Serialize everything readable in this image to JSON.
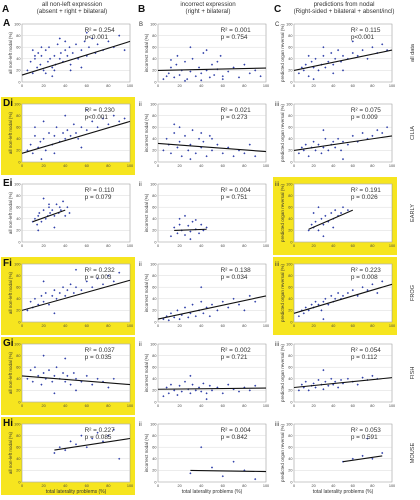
{
  "column_headers": [
    {
      "letter": "A",
      "title": "all non-left expression",
      "subtitle": "(absent + right + bilateral)"
    },
    {
      "letter": "B",
      "title": "incorrect expression",
      "subtitle": "(right + bilateral)"
    },
    {
      "letter": "C",
      "title": "predictions from nodal",
      "subtitle": "(Right-sided + bilateral + absent/incl)"
    }
  ],
  "row_labels": [
    "all data",
    "CILIA",
    "EARLY",
    "FROG",
    "FISH",
    "MOUSE"
  ],
  "panel_labels": [
    [
      "A",
      "B",
      "C"
    ],
    [
      "Di",
      "ii",
      "iii"
    ],
    [
      "Ei",
      "ii",
      "iii"
    ],
    [
      "Fi",
      "ii",
      "iii"
    ],
    [
      "Gi",
      "ii",
      "iii"
    ],
    [
      "Hi",
      "ii",
      "iii"
    ]
  ],
  "x_axis_title": "total laterality problems (%)",
  "y_axis_titles": [
    "all non-left nodal (%)",
    "incorrect nodal (%)",
    "predicted organ reversal (%)"
  ],
  "highlight_color": "#f6e51f",
  "point_color": "#2f3fa8",
  "line_color": "#111111",
  "chart_data": [
    {
      "type": "scatter",
      "row": 0,
      "col": 0,
      "r2": "R² = 0.254",
      "p": "p<0.001",
      "highlight": false,
      "trend": [
        [
          0,
          12
        ],
        [
          100,
          70
        ]
      ],
      "xlim": [
        0,
        100
      ],
      "ylim": [
        0,
        100
      ],
      "x": [
        5,
        8,
        10,
        12,
        14,
        15,
        17,
        18,
        20,
        22,
        24,
        25,
        26,
        28,
        30,
        31,
        33,
        35,
        36,
        38,
        40,
        42,
        44,
        45,
        47,
        50,
        52,
        55,
        58,
        60,
        62,
        65,
        68,
        70,
        75,
        80,
        85,
        90,
        95,
        30,
        18,
        12,
        22,
        40,
        55,
        60,
        10,
        28,
        35,
        45
      ],
      "y": [
        20,
        35,
        15,
        40,
        25,
        50,
        30,
        45,
        20,
        55,
        35,
        60,
        40,
        25,
        45,
        30,
        65,
        40,
        50,
        35,
        55,
        45,
        60,
        30,
        50,
        65,
        40,
        55,
        70,
        45,
        60,
        75,
        50,
        65,
        55,
        70,
        60,
        80,
        55,
        20,
        60,
        45,
        15,
        70,
        25,
        85,
        55,
        10,
        75,
        20
      ]
    },
    {
      "type": "scatter",
      "row": 0,
      "col": 1,
      "r2": "R² = 0.001",
      "p": "p = 0.754",
      "highlight": false,
      "trend": [
        [
          0,
          20
        ],
        [
          100,
          24
        ]
      ],
      "xlim": [
        0,
        100
      ],
      "ylim": [
        0,
        100
      ],
      "x": [
        5,
        8,
        10,
        12,
        15,
        17,
        20,
        22,
        25,
        27,
        30,
        32,
        35,
        38,
        40,
        42,
        45,
        48,
        50,
        52,
        55,
        58,
        60,
        65,
        70,
        75,
        80,
        85,
        90,
        95,
        30,
        25,
        18,
        12,
        40,
        45,
        55,
        60
      ],
      "y": [
        5,
        10,
        15,
        25,
        8,
        30,
        12,
        20,
        35,
        5,
        18,
        40,
        10,
        25,
        15,
        50,
        20,
        8,
        30,
        12,
        22,
        45,
        10,
        18,
        25,
        8,
        30,
        15,
        20,
        10,
        60,
        2,
        45,
        38,
        3,
        55,
        35,
        5
      ]
    },
    {
      "type": "scatter",
      "row": 0,
      "col": 2,
      "r2": "R² = 0.115",
      "p": "p<0.001",
      "highlight": false,
      "trend": [
        [
          0,
          20
        ],
        [
          100,
          55
        ]
      ],
      "xlim": [
        0,
        100
      ],
      "ylim": [
        0,
        100
      ],
      "x": [
        5,
        8,
        10,
        12,
        15,
        18,
        20,
        22,
        25,
        28,
        30,
        32,
        35,
        38,
        40,
        42,
        45,
        48,
        50,
        55,
        60,
        65,
        70,
        75,
        80,
        85,
        90,
        95,
        30,
        20,
        15,
        40,
        50,
        60
      ],
      "y": [
        15,
        25,
        20,
        30,
        10,
        35,
        25,
        40,
        20,
        30,
        45,
        25,
        35,
        50,
        30,
        40,
        55,
        35,
        45,
        40,
        50,
        45,
        55,
        40,
        60,
        50,
        65,
        55,
        60,
        5,
        45,
        15,
        20,
        70
      ]
    },
    {
      "type": "scatter",
      "row": 1,
      "col": 0,
      "r2": "R² = 0.230",
      "p": "p<0.001",
      "highlight": true,
      "trend": [
        [
          0,
          15
        ],
        [
          100,
          70
        ]
      ],
      "xlim": [
        0,
        100
      ],
      "ylim": [
        0,
        100
      ],
      "x": [
        5,
        8,
        10,
        12,
        15,
        17,
        20,
        22,
        25,
        28,
        30,
        32,
        35,
        38,
        40,
        42,
        45,
        48,
        50,
        52,
        55,
        60,
        65,
        70,
        75,
        80,
        85,
        90,
        95,
        20,
        30,
        40,
        55,
        60,
        12,
        18
      ],
      "y": [
        20,
        30,
        15,
        45,
        25,
        35,
        40,
        20,
        50,
        30,
        45,
        60,
        35,
        50,
        40,
        55,
        45,
        65,
        50,
        40,
        60,
        55,
        70,
        60,
        75,
        65,
        80,
        70,
        75,
        70,
        15,
        80,
        25,
        90,
        60,
        5
      ]
    },
    {
      "type": "scatter",
      "row": 1,
      "col": 1,
      "r2": "R² = 0.021",
      "p": "p = 0.273",
      "highlight": false,
      "trend": [
        [
          0,
          32
        ],
        [
          100,
          18
        ]
      ],
      "xlim": [
        0,
        100
      ],
      "ylim": [
        0,
        100
      ],
      "x": [
        5,
        8,
        10,
        12,
        15,
        18,
        20,
        22,
        25,
        28,
        30,
        32,
        35,
        38,
        40,
        42,
        45,
        48,
        50,
        55,
        60,
        65,
        70,
        75,
        80,
        85,
        90,
        20,
        30,
        15,
        40,
        50
      ],
      "y": [
        20,
        40,
        30,
        15,
        50,
        25,
        35,
        10,
        45,
        20,
        30,
        55,
        15,
        40,
        25,
        35,
        10,
        45,
        20,
        30,
        15,
        25,
        10,
        20,
        15,
        30,
        10,
        60,
        5,
        65,
        50,
        40
      ]
    },
    {
      "type": "scatter",
      "row": 1,
      "col": 2,
      "r2": "R² = 0.075",
      "p": "p = 0.009",
      "highlight": false,
      "trend": [
        [
          0,
          20
        ],
        [
          100,
          45
        ]
      ],
      "xlim": [
        0,
        100
      ],
      "ylim": [
        0,
        100
      ],
      "x": [
        5,
        8,
        10,
        12,
        15,
        18,
        20,
        22,
        25,
        28,
        30,
        32,
        35,
        38,
        40,
        42,
        45,
        48,
        50,
        55,
        60,
        65,
        70,
        75,
        80,
        85,
        90,
        95,
        30,
        50
      ],
      "y": [
        15,
        25,
        20,
        30,
        10,
        25,
        35,
        20,
        30,
        15,
        25,
        40,
        20,
        30,
        35,
        25,
        40,
        20,
        35,
        30,
        45,
        35,
        50,
        40,
        45,
        55,
        50,
        60,
        55,
        5
      ]
    },
    {
      "type": "scatter",
      "row": 2,
      "col": 0,
      "r2": "R² = 0.110",
      "p": "p = 0.079",
      "highlight": false,
      "trend": [
        [
          10,
          35
        ],
        [
          40,
          55
        ]
      ],
      "xlim": [
        0,
        100
      ],
      "ylim": [
        0,
        100
      ],
      "x": [
        10,
        12,
        14,
        15,
        16,
        18,
        20,
        22,
        24,
        25,
        26,
        28,
        30,
        32,
        34,
        35,
        36,
        38,
        40,
        42,
        44,
        20,
        15,
        30,
        25
      ],
      "y": [
        35,
        40,
        30,
        45,
        50,
        35,
        55,
        40,
        45,
        60,
        50,
        55,
        45,
        65,
        50,
        60,
        55,
        70,
        45,
        60,
        50,
        75,
        20,
        25,
        65
      ]
    },
    {
      "type": "scatter",
      "row": 2,
      "col": 1,
      "r2": "R² = 0.004",
      "p": "p = 0.751",
      "highlight": false,
      "trend": [
        [
          15,
          20
        ],
        [
          45,
          22
        ]
      ],
      "xlim": [
        0,
        100
      ],
      "ylim": [
        0,
        100
      ],
      "x": [
        12,
        15,
        18,
        20,
        22,
        25,
        28,
        30,
        32,
        35,
        38,
        40,
        42,
        45,
        20,
        30,
        25,
        35
      ],
      "y": [
        10,
        25,
        15,
        30,
        20,
        12,
        28,
        18,
        35,
        22,
        15,
        30,
        20,
        25,
        40,
        5,
        45,
        38
      ]
    },
    {
      "type": "scatter",
      "row": 2,
      "col": 2,
      "r2": "R² = 0.191",
      "p": "p = 0.026",
      "highlight": true,
      "trend": [
        [
          15,
          22
        ],
        [
          60,
          55
        ]
      ],
      "xlim": [
        0,
        100
      ],
      "ylim": [
        0,
        100
      ],
      "x": [
        15,
        18,
        20,
        22,
        25,
        28,
        30,
        32,
        35,
        38,
        40,
        42,
        45,
        48,
        50,
        55,
        20,
        30,
        40,
        25
      ],
      "y": [
        20,
        30,
        25,
        35,
        20,
        40,
        30,
        45,
        35,
        50,
        40,
        55,
        45,
        50,
        60,
        55,
        50,
        10,
        25,
        60
      ]
    },
    {
      "type": "scatter",
      "row": 3,
      "col": 0,
      "r2": "R² = 0.232",
      "p": "p = 0.003",
      "highlight": true,
      "trend": [
        [
          0,
          20
        ],
        [
          100,
          72
        ]
      ],
      "xlim": [
        0,
        100
      ],
      "ylim": [
        0,
        100
      ],
      "x": [
        5,
        8,
        10,
        12,
        15,
        18,
        20,
        22,
        25,
        28,
        30,
        32,
        35,
        38,
        40,
        42,
        45,
        48,
        50,
        55,
        60,
        65,
        70,
        75,
        80,
        85,
        90,
        20,
        30,
        50
      ],
      "y": [
        20,
        35,
        25,
        40,
        30,
        45,
        35,
        50,
        30,
        45,
        55,
        40,
        50,
        60,
        45,
        55,
        65,
        50,
        60,
        55,
        70,
        60,
        75,
        65,
        80,
        70,
        85,
        70,
        15,
        90
      ]
    },
    {
      "type": "scatter",
      "row": 3,
      "col": 1,
      "r2": "R² = 0.138",
      "p": "p = 0.034",
      "highlight": false,
      "trend": [
        [
          0,
          5
        ],
        [
          100,
          45
        ]
      ],
      "xlim": [
        0,
        100
      ],
      "ylim": [
        0,
        100
      ],
      "x": [
        5,
        8,
        10,
        12,
        15,
        18,
        20,
        22,
        25,
        28,
        30,
        32,
        35,
        38,
        40,
        42,
        45,
        48,
        50,
        55,
        60,
        65,
        70,
        75,
        80,
        85,
        90,
        40
      ],
      "y": [
        5,
        10,
        3,
        15,
        8,
        20,
        5,
        12,
        25,
        8,
        15,
        30,
        10,
        20,
        35,
        15,
        25,
        10,
        30,
        20,
        35,
        25,
        40,
        30,
        20,
        45,
        35,
        60
      ]
    },
    {
      "type": "scatter",
      "row": 3,
      "col": 2,
      "r2": "R² = 0.223",
      "p": "p = 0.008",
      "highlight": true,
      "trend": [
        [
          0,
          15
        ],
        [
          100,
          65
        ]
      ],
      "xlim": [
        0,
        100
      ],
      "ylim": [
        0,
        100
      ],
      "x": [
        5,
        8,
        10,
        12,
        15,
        18,
        20,
        22,
        25,
        28,
        30,
        32,
        35,
        38,
        40,
        42,
        45,
        48,
        50,
        55,
        60,
        65,
        70,
        75,
        80,
        85,
        90,
        30
      ],
      "y": [
        10,
        20,
        15,
        25,
        20,
        30,
        25,
        35,
        30,
        20,
        35,
        40,
        30,
        45,
        35,
        40,
        50,
        40,
        45,
        50,
        55,
        45,
        60,
        55,
        65,
        50,
        70,
        5
      ]
    },
    {
      "type": "scatter",
      "row": 4,
      "col": 0,
      "r2": "R² = 0.037",
      "p": "p = 0.035",
      "highlight": true,
      "trend": [
        [
          0,
          45
        ],
        [
          100,
          30
        ]
      ],
      "xlim": [
        0,
        100
      ],
      "ylim": [
        0,
        100
      ],
      "x": [
        5,
        8,
        10,
        12,
        15,
        18,
        20,
        22,
        25,
        28,
        30,
        32,
        35,
        38,
        40,
        42,
        45,
        48,
        50,
        55,
        60,
        65,
        70,
        75,
        80,
        85,
        20,
        30,
        40,
        50
      ],
      "y": [
        40,
        55,
        35,
        60,
        45,
        30,
        50,
        40,
        55,
        35,
        45,
        60,
        40,
        50,
        35,
        45,
        30,
        50,
        40,
        35,
        45,
        30,
        40,
        35,
        25,
        40,
        80,
        15,
        75,
        20
      ]
    },
    {
      "type": "scatter",
      "row": 4,
      "col": 1,
      "r2": "R² = 0.002",
      "p": "p = 0.721",
      "highlight": false,
      "trend": [
        [
          0,
          22
        ],
        [
          100,
          24
        ]
      ],
      "xlim": [
        0,
        100
      ],
      "ylim": [
        0,
        100
      ],
      "x": [
        5,
        8,
        10,
        12,
        15,
        18,
        20,
        22,
        25,
        28,
        30,
        32,
        35,
        38,
        40,
        42,
        45,
        48,
        50,
        55,
        60,
        65,
        70,
        75,
        80,
        85,
        90,
        30,
        45
      ],
      "y": [
        10,
        25,
        15,
        30,
        20,
        12,
        28,
        18,
        35,
        22,
        15,
        30,
        20,
        25,
        18,
        32,
        15,
        28,
        20,
        25,
        15,
        30,
        22,
        18,
        25,
        20,
        28,
        45,
        5
      ]
    },
    {
      "type": "scatter",
      "row": 4,
      "col": 2,
      "r2": "R² = 0.054",
      "p": "p = 0.112",
      "highlight": false,
      "trend": [
        [
          0,
          25
        ],
        [
          100,
          42
        ]
      ],
      "xlim": [
        0,
        100
      ],
      "ylim": [
        0,
        100
      ],
      "x": [
        5,
        8,
        10,
        12,
        15,
        18,
        20,
        22,
        25,
        28,
        30,
        32,
        35,
        38,
        40,
        42,
        45,
        48,
        50,
        55,
        60,
        65,
        70,
        75,
        80,
        85,
        30
      ],
      "y": [
        20,
        30,
        25,
        35,
        20,
        28,
        32,
        25,
        38,
        30,
        22,
        35,
        28,
        40,
        30,
        35,
        25,
        38,
        32,
        40,
        35,
        30,
        42,
        38,
        45,
        40,
        55
      ]
    },
    {
      "type": "scatter",
      "row": 5,
      "col": 0,
      "r2": "R² = 0.227",
      "p": "p = 0.085",
      "highlight": true,
      "trend": [
        [
          30,
          55
        ],
        [
          100,
          75
        ]
      ],
      "xlim": [
        0,
        100
      ],
      "ylim": [
        0,
        100
      ],
      "x": [
        30,
        35,
        40,
        45,
        50,
        55,
        60,
        65,
        70,
        75,
        80,
        85,
        90
      ],
      "y": [
        50,
        60,
        55,
        70,
        65,
        80,
        60,
        75,
        85,
        70,
        80,
        90,
        40
      ]
    },
    {
      "type": "scatter",
      "row": 5,
      "col": 1,
      "r2": "R² = 0.004",
      "p": "p = 0.842",
      "highlight": false,
      "trend": [
        [
          30,
          20
        ],
        [
          100,
          18
        ]
      ],
      "xlim": [
        0,
        100
      ],
      "ylim": [
        0,
        100
      ],
      "x": [
        30,
        40,
        50,
        60,
        70,
        80,
        90
      ],
      "y": [
        15,
        60,
        25,
        10,
        35,
        20,
        5
      ]
    },
    {
      "type": "scatter",
      "row": 5,
      "col": 2,
      "r2": "R² = 0.053",
      "p": "p = 0.591",
      "highlight": false,
      "trend": [
        [
          50,
          35
        ],
        [
          90,
          45
        ]
      ],
      "xlim": [
        0,
        100
      ],
      "ylim": [
        0,
        100
      ],
      "x": [
        50,
        60,
        70,
        80,
        90,
        75
      ],
      "y": [
        35,
        40,
        45,
        40,
        50,
        75
      ]
    }
  ]
}
